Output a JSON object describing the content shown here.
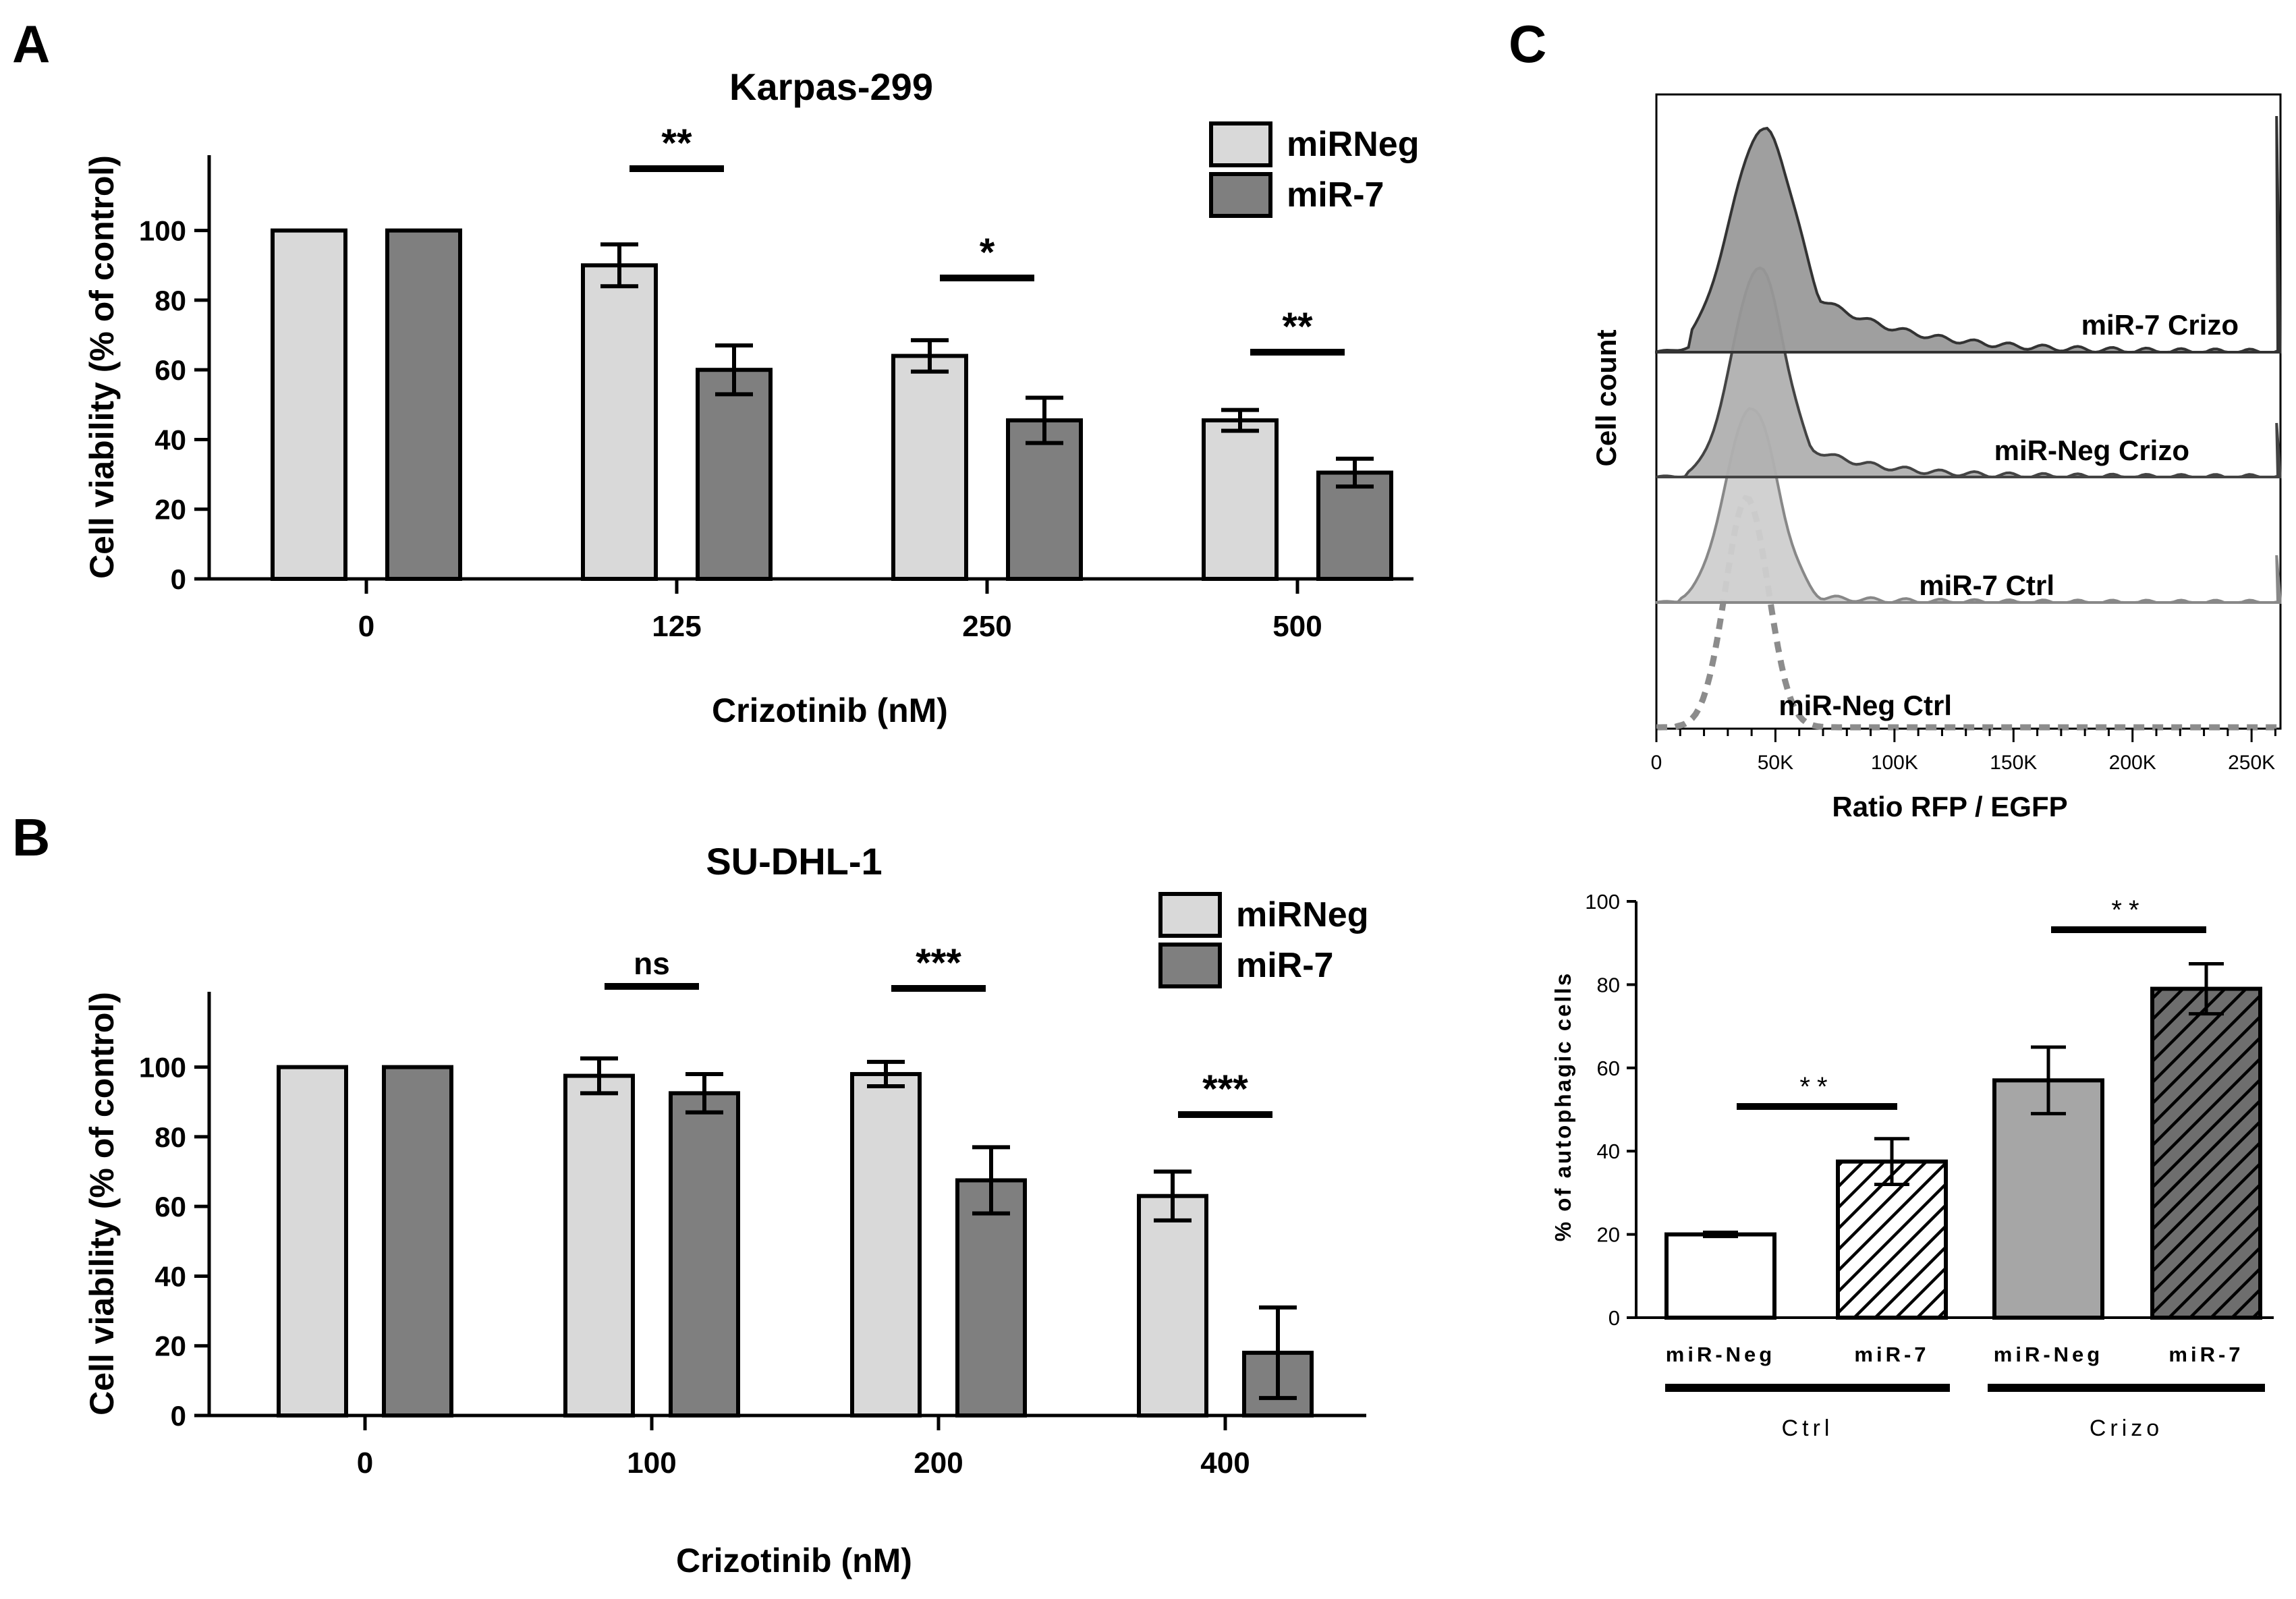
{
  "panels": {
    "A": {
      "letter": "A"
    },
    "B": {
      "letter": "B"
    },
    "C": {
      "letter": "C"
    }
  },
  "colors": {
    "mirneg": "#d9d9d9",
    "mir7": "#7f7f7f",
    "grey_bar": "#a6a6a6",
    "hatch_bar": "#595959"
  },
  "chart_data": [
    {
      "id": "A",
      "type": "bar",
      "title": "Karpas-299",
      "xlabel": "Crizotinib (nM)",
      "ylabel": "Cell viability (% of control)",
      "ylim": [
        0,
        110
      ],
      "yticks": [
        0,
        20,
        40,
        60,
        80,
        100
      ],
      "categories": [
        "0",
        "125",
        "250",
        "500"
      ],
      "series": [
        {
          "name": "miRNeg",
          "values": [
            100,
            90,
            64,
            45.5
          ],
          "errors": [
            0,
            6,
            4.5,
            3
          ]
        },
        {
          "name": "miR-7",
          "values": [
            100,
            60,
            45.5,
            30.5
          ],
          "errors": [
            0,
            7,
            6.5,
            4
          ]
        }
      ],
      "legend": "top-right",
      "annotations": [
        {
          "category": "125",
          "label": "**"
        },
        {
          "category": "250",
          "label": "*"
        },
        {
          "category": "500",
          "label": "**"
        }
      ]
    },
    {
      "id": "B",
      "type": "bar",
      "title": "SU-DHL-1",
      "xlabel": "Crizotinib (nM)",
      "ylabel": "Cell viability (% of control)",
      "ylim": [
        0,
        110
      ],
      "yticks": [
        0,
        20,
        40,
        60,
        80,
        100
      ],
      "categories": [
        "0",
        "100",
        "200",
        "400"
      ],
      "series": [
        {
          "name": "miRNeg",
          "values": [
            100,
            97.5,
            98,
            63
          ],
          "errors": [
            0,
            5,
            3.5,
            7
          ]
        },
        {
          "name": "miR-7",
          "values": [
            100,
            92.5,
            67.5,
            18
          ],
          "errors": [
            0,
            5.5,
            9.5,
            13
          ]
        }
      ],
      "legend": "top-right",
      "annotations": [
        {
          "category": "100",
          "label": "ns"
        },
        {
          "category": "200",
          "label": "***"
        },
        {
          "category": "400",
          "label": "***"
        }
      ]
    },
    {
      "id": "C-hist",
      "type": "area",
      "ylabel": "Cell count",
      "xlabel": "Ratio RFP / EGFP",
      "xlim": [
        0,
        262144
      ],
      "xticks": [
        0,
        50000,
        100000,
        150000,
        200000,
        250000
      ],
      "xticklabels": [
        "0",
        "50K",
        "100K",
        "150K",
        "200K",
        "250K"
      ],
      "series": [
        {
          "name": "miR-7 Crizo",
          "peak": 45000,
          "style": "dark"
        },
        {
          "name": "miR-Neg Crizo",
          "peak": 43000,
          "style": "medium"
        },
        {
          "name": "miR-7 Ctrl",
          "peak": 40000,
          "style": "light"
        },
        {
          "name": "miR-Neg Ctrl",
          "peak": 38000,
          "style": "dashed"
        }
      ]
    },
    {
      "id": "C-bar",
      "type": "bar",
      "ylabel": "% of autophagic cells",
      "ylim": [
        0,
        100
      ],
      "yticks": [
        0,
        20,
        40,
        60,
        80,
        100
      ],
      "categories": [
        "miR-Neg",
        "miR-7",
        "miR-Neg",
        "miR-7"
      ],
      "groups": [
        {
          "label": "Ctrl",
          "span": [
            0,
            1
          ]
        },
        {
          "label": "Crizo",
          "span": [
            2,
            3
          ]
        }
      ],
      "values": [
        20,
        37.5,
        57,
        79
      ],
      "errors": [
        0.5,
        5.5,
        8,
        6
      ],
      "fills": [
        "white",
        "hatch",
        "grey",
        "hatch-dark"
      ],
      "annotations": [
        {
          "between": [
            0,
            1
          ],
          "label": "**"
        },
        {
          "between": [
            2,
            3
          ],
          "label": "**"
        }
      ]
    }
  ]
}
